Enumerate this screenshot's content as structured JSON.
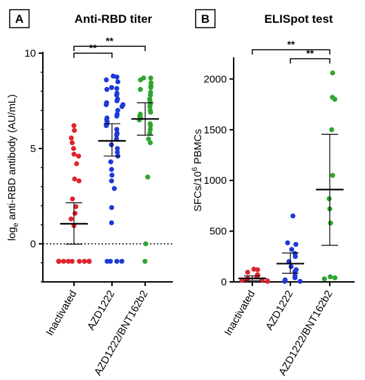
{
  "chart_data": [
    {
      "panel": "A",
      "type": "scatter",
      "title": "Anti-RBD titer",
      "ylabel": "log_e anti-RBD antibody (AU/mL)",
      "ylabel_base": "log",
      "ylabel_sub": "e",
      "ylabel_rest": " anti-RBD antibody (AU/mL)",
      "ylim": [
        -2,
        10
      ],
      "yticks": [
        0,
        5,
        10
      ],
      "reference_line": {
        "y": 0,
        "style": "dotted"
      },
      "categories": [
        "Inactivated",
        "AZD1222",
        "AZD1222/BNT162b2"
      ],
      "colors": [
        "#e0242e",
        "#1e3ad6",
        "#2ea52e"
      ],
      "series": [
        {
          "name": "Inactivated",
          "values": [
            6.2,
            5.95,
            5.55,
            5.3,
            5.0,
            4.7,
            4.6,
            4.2,
            3.4,
            3.3,
            2.35,
            1.95,
            1.6,
            1.3,
            0.95,
            -0.92,
            -0.92,
            -0.92,
            -0.92,
            -0.92,
            -0.92,
            -0.92,
            -0.92,
            -0.92,
            -0.92,
            -0.92,
            -0.92,
            -0.92,
            -0.92,
            -0.92
          ],
          "mean": 1.05,
          "ci": [
            -0.02,
            2.15
          ]
        },
        {
          "name": "AZD1222",
          "values": [
            8.8,
            8.75,
            8.6,
            8.5,
            8.2,
            8.15,
            8.1,
            7.9,
            7.8,
            7.6,
            7.5,
            7.4,
            7.3,
            7.3,
            7.2,
            7.0,
            6.8,
            6.7,
            6.6,
            6.5,
            6.4,
            6.3,
            6.2,
            6.0,
            5.8,
            5.7,
            5.5,
            5.2,
            5.0,
            4.8,
            4.6,
            4.3,
            3.9,
            3.6,
            3.3,
            2.9,
            1.9,
            1.1,
            -0.92,
            -0.92,
            -0.92,
            -0.92
          ],
          "mean": 5.4,
          "ci": [
            4.6,
            6.3
          ]
        },
        {
          "name": "AZD1222/BNT162b2",
          "values": [
            8.7,
            8.7,
            8.6,
            8.45,
            8.3,
            8.2,
            8.1,
            7.95,
            7.8,
            7.6,
            7.5,
            7.3,
            7.2,
            7.0,
            6.9,
            6.8,
            6.7,
            6.6,
            6.5,
            6.3,
            6.2,
            6.0,
            5.8,
            5.5,
            5.3,
            3.5,
            0.0,
            -0.92
          ],
          "mean": 6.55,
          "ci": [
            5.7,
            7.4
          ]
        }
      ],
      "significance": [
        {
          "from": 0,
          "to": 1,
          "label": "**"
        },
        {
          "from": 0,
          "to": 2,
          "label": "**"
        }
      ]
    },
    {
      "panel": "B",
      "type": "scatter",
      "title": "ELISpot test",
      "ylabel": "SFCs/10^6 PBMCs",
      "ylabel_base": "SFCs/10",
      "ylabel_sup": "6",
      "ylabel_rest": " PBMCs",
      "ylim": [
        0,
        2200
      ],
      "yticks": [
        0,
        500,
        1000,
        1500,
        2000
      ],
      "categories": [
        "Inactivated",
        "AZD1222",
        "AZD1222/BNT162b2"
      ],
      "colors": [
        "#e0242e",
        "#1e3ad6",
        "#2ea52e"
      ],
      "series": [
        {
          "name": "Inactivated",
          "values": [
            125,
            120,
            95,
            70,
            50,
            35,
            25,
            20,
            15,
            10,
            5
          ],
          "mean": 35,
          "ci": [
            15,
            60
          ]
        },
        {
          "name": "AZD1222",
          "values": [
            650,
            385,
            370,
            320,
            280,
            250,
            200,
            150,
            120,
            100,
            60,
            40,
            20,
            5,
            5
          ],
          "mean": 180,
          "ci": [
            85,
            285
          ]
        },
        {
          "name": "AZD1222/BNT162b2",
          "values": [
            2060,
            1820,
            1800,
            1500,
            1050,
            820,
            720,
            580,
            50,
            40,
            30
          ],
          "mean": 910,
          "ci": [
            360,
            1455
          ]
        }
      ],
      "significance": [
        {
          "from": 1,
          "to": 2,
          "label": "**"
        },
        {
          "from": 0,
          "to": 2,
          "label": "**"
        }
      ]
    }
  ]
}
